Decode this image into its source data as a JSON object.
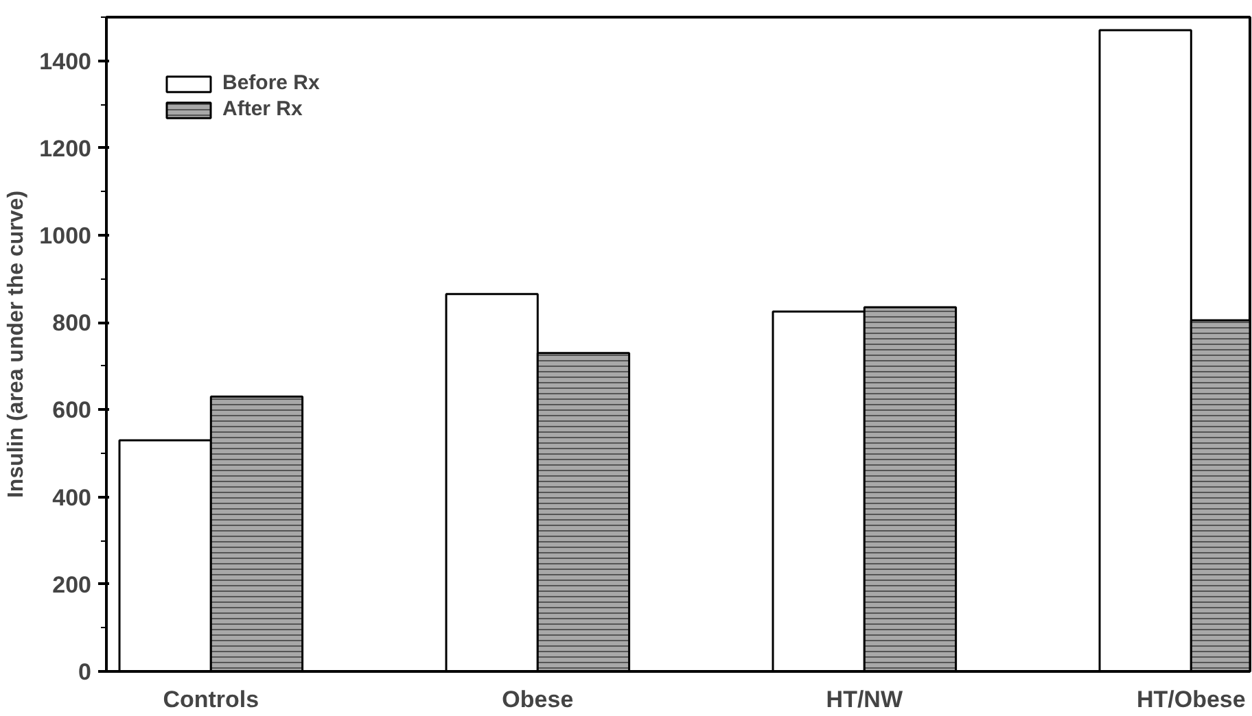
{
  "chart_data": {
    "type": "bar",
    "ylabel": "Insulin (area under the curve)",
    "categories": [
      "Controls",
      "Obese",
      "HT/NW",
      "HT/Obese"
    ],
    "series": [
      {
        "name": "Before Rx",
        "color": "#ffffff",
        "values": [
          530,
          865,
          825,
          1470
        ]
      },
      {
        "name": "After Rx",
        "color": "#a8a8a8",
        "values": [
          630,
          730,
          835,
          805
        ]
      }
    ],
    "ylim": [
      0,
      1500
    ],
    "yticks": [
      0,
      200,
      400,
      600,
      800,
      1000,
      1200,
      1400
    ],
    "grid": false,
    "legend": "top left"
  }
}
